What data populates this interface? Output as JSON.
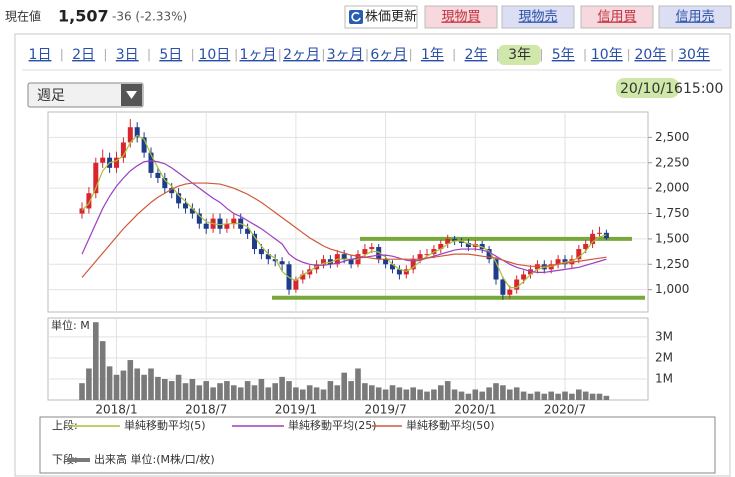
{
  "header": {
    "label": "現在値",
    "price": "1,507",
    "change": "-36 (-2.33%)",
    "buttons": [
      "株価更新",
      "現物買",
      "現物売",
      "信用買",
      "信用売"
    ]
  },
  "periods": {
    "items": [
      "1日",
      "2日",
      "3日",
      "5日",
      "10日",
      "1ヶ月",
      "2ヶ月",
      "3ヶ月",
      "6ヶ月",
      "1年",
      "2年",
      "3年",
      "5年",
      "10年",
      "20年",
      "30年"
    ],
    "selected": 11
  },
  "dropdown": "週足",
  "timestamp": {
    "date": "20/10/16",
    "time": "15:00"
  },
  "chart_data": {
    "type": "candlestick",
    "categories": [
      null,
      null,
      null,
      null,
      null,
      "2018/1",
      null,
      null,
      null,
      null,
      null,
      null,
      null,
      null,
      null,
      null,
      null,
      null,
      "2018/7",
      null,
      null,
      null,
      null,
      null,
      null,
      null,
      null,
      null,
      null,
      null,
      null,
      "2019/1",
      null,
      null,
      null,
      null,
      null,
      null,
      null,
      null,
      null,
      null,
      null,
      null,
      "2019/7",
      null,
      null,
      null,
      null,
      null,
      null,
      null,
      null,
      null,
      null,
      null,
      null,
      "2020/1",
      null,
      null,
      null,
      null,
      null,
      null,
      null,
      null,
      null,
      null,
      null,
      null,
      "2020/7",
      null,
      null,
      null,
      null,
      null,
      null
    ],
    "open": [
      1750,
      1800,
      1950,
      2250,
      2300,
      2200,
      2300,
      2450,
      2600,
      2500,
      2350,
      2150,
      2100,
      2000,
      1950,
      1850,
      1800,
      1750,
      1650,
      1600,
      1700,
      1600,
      1650,
      1700,
      1600,
      1550,
      1400,
      1350,
      1300,
      1280,
      1250,
      1000,
      1100,
      1150,
      1200,
      1250,
      1300,
      1250,
      1350,
      1300,
      1250,
      1350,
      1400,
      1420,
      1300,
      1250,
      1200,
      1150,
      1200,
      1300,
      1350,
      1350,
      1400,
      1450,
      1500,
      1480,
      1460,
      1420,
      1450,
      1400,
      1300,
      1100,
      950,
      1000,
      1100,
      1150,
      1200,
      1250,
      1200,
      1250,
      1300,
      1250,
      1300,
      1400,
      1450,
      1550,
      1560
    ],
    "high": [
      1860,
      2010,
      2300,
      2380,
      2350,
      2360,
      2500,
      2680,
      2650,
      2550,
      2400,
      2200,
      2150,
      2050,
      2000,
      1900,
      1850,
      1800,
      1700,
      1750,
      1750,
      1700,
      1750,
      1750,
      1650,
      1580,
      1450,
      1400,
      1350,
      1320,
      1280,
      1130,
      1190,
      1240,
      1290,
      1340,
      1340,
      1390,
      1390,
      1340,
      1390,
      1450,
      1460,
      1450,
      1340,
      1290,
      1240,
      1240,
      1340,
      1390,
      1400,
      1440,
      1490,
      1540,
      1530,
      1510,
      1500,
      1490,
      1480,
      1430,
      1320,
      1130,
      1040,
      1140,
      1190,
      1240,
      1290,
      1290,
      1290,
      1340,
      1340,
      1340,
      1440,
      1490,
      1590,
      1620,
      1590
    ],
    "low": [
      1700,
      1750,
      1900,
      2200,
      2150,
      2150,
      2250,
      2400,
      2450,
      2300,
      2100,
      2050,
      1950,
      1900,
      1800,
      1750,
      1700,
      1600,
      1550,
      1560,
      1550,
      1560,
      1600,
      1550,
      1500,
      1350,
      1300,
      1250,
      1230,
      1180,
      950,
      970,
      1060,
      1110,
      1160,
      1210,
      1210,
      1220,
      1260,
      1210,
      1220,
      1310,
      1360,
      1260,
      1210,
      1160,
      1100,
      1110,
      1160,
      1260,
      1310,
      1310,
      1360,
      1410,
      1440,
      1420,
      1380,
      1380,
      1360,
      1260,
      1050,
      900,
      910,
      960,
      1060,
      1110,
      1160,
      1160,
      1160,
      1210,
      1210,
      1210,
      1260,
      1360,
      1410,
      1510,
      1490
    ],
    "close": [
      1800,
      1950,
      2250,
      2300,
      2200,
      2300,
      2450,
      2600,
      2500,
      2350,
      2150,
      2100,
      2000,
      1950,
      1850,
      1800,
      1750,
      1650,
      1600,
      1700,
      1600,
      1650,
      1700,
      1600,
      1550,
      1400,
      1350,
      1300,
      1280,
      1250,
      1000,
      1100,
      1150,
      1200,
      1250,
      1300,
      1250,
      1350,
      1300,
      1250,
      1350,
      1400,
      1420,
      1300,
      1250,
      1200,
      1150,
      1200,
      1300,
      1350,
      1350,
      1400,
      1450,
      1500,
      1480,
      1460,
      1420,
      1450,
      1400,
      1300,
      1100,
      950,
      1000,
      1100,
      1150,
      1200,
      1250,
      1200,
      1250,
      1300,
      1250,
      1300,
      1400,
      1450,
      1550,
      1560,
      1507
    ],
    "up_color": "#d9262e",
    "down_color": "#1f3c8c",
    "ylim": [
      780,
      2750
    ],
    "yticks": [
      {
        "value": 1000,
        "label": "1,000"
      },
      {
        "value": 1250,
        "label": "1,250"
      },
      {
        "value": 1500,
        "label": "1,500"
      },
      {
        "value": 1750,
        "label": "1,750"
      },
      {
        "value": 2000,
        "label": "2,000"
      },
      {
        "value": 2250,
        "label": "2,250"
      },
      {
        "value": 2500,
        "label": "2,500"
      }
    ],
    "grid": true,
    "legend_upper": "上段:",
    "legend_lower": "下段:",
    "series": [
      {
        "name": "単純移動平均(5)",
        "color": "#a9c13a",
        "values": [
          1780,
          1850,
          2000,
          2170,
          2250,
          2270,
          2320,
          2450,
          2520,
          2480,
          2330,
          2200,
          2080,
          2020,
          1930,
          1870,
          1800,
          1730,
          1670,
          1650,
          1640,
          1650,
          1650,
          1650,
          1620,
          1520,
          1430,
          1350,
          1310,
          1180,
          1120,
          1090,
          1150,
          1180,
          1230,
          1260,
          1270,
          1300,
          1300,
          1300,
          1300,
          1340,
          1380,
          1370,
          1320,
          1250,
          1200,
          1180,
          1220,
          1280,
          1330,
          1370,
          1400,
          1450,
          1480,
          1480,
          1450,
          1440,
          1420,
          1380,
          1270,
          1120,
          1020,
          1020,
          1080,
          1150,
          1200,
          1220,
          1230,
          1250,
          1270,
          1280,
          1320,
          1380,
          1470,
          1520,
          1540
        ]
      },
      {
        "name": "単純移動平均(25)",
        "color": "#9b3fc0",
        "values": [
          1350,
          1500,
          1650,
          1800,
          1920,
          2020,
          2100,
          2170,
          2220,
          2260,
          2270,
          2260,
          2240,
          2200,
          2150,
          2100,
          2050,
          2000,
          1950,
          1900,
          1860,
          1800,
          1750,
          1720,
          1680,
          1640,
          1600,
          1550,
          1500,
          1450,
          1350,
          1300,
          1270,
          1250,
          1240,
          1240,
          1250,
          1260,
          1280,
          1300,
          1310,
          1320,
          1330,
          1340,
          1340,
          1330,
          1310,
          1290,
          1280,
          1290,
          1310,
          1330,
          1350,
          1370,
          1390,
          1400,
          1400,
          1400,
          1390,
          1370,
          1330,
          1290,
          1250,
          1220,
          1200,
          1180,
          1170,
          1170,
          1180,
          1190,
          1200,
          1210,
          1220,
          1240,
          1260,
          1280,
          1300
        ]
      },
      {
        "name": "単純移動平均(50)",
        "color": "#d0583a",
        "values": [
          1120,
          1200,
          1280,
          1360,
          1440,
          1520,
          1600,
          1670,
          1740,
          1800,
          1860,
          1910,
          1950,
          1990,
          2020,
          2040,
          2050,
          2050,
          2050,
          2045,
          2040,
          2020,
          2000,
          1970,
          1940,
          1900,
          1860,
          1810,
          1760,
          1710,
          1660,
          1610,
          1560,
          1510,
          1470,
          1430,
          1400,
          1380,
          1360,
          1340,
          1330,
          1320,
          1310,
          1300,
          1300,
          1300,
          1300,
          1300,
          1300,
          1300,
          1310,
          1320,
          1330,
          1340,
          1350,
          1350,
          1350,
          1340,
          1330,
          1320,
          1310,
          1290,
          1270,
          1250,
          1240,
          1230,
          1230,
          1230,
          1240,
          1250,
          1260,
          1270,
          1280,
          1290,
          1300,
          1310,
          1320
        ]
      }
    ],
    "reference_lines": [
      {
        "value": 1500,
        "color": "#79a83a"
      },
      {
        "value": 920,
        "color": "#79a83a"
      }
    ],
    "volume": {
      "name": "出来高 単位:(M株/口/枚)",
      "unit_label": "単位: M",
      "color": "#7a7a7a",
      "values": [
        800000,
        1500000,
        3700000,
        2800000,
        1600000,
        1200000,
        1400000,
        1900000,
        1500000,
        1200000,
        1500000,
        1100000,
        1000000,
        900000,
        1200000,
        800000,
        1000000,
        700000,
        900000,
        600000,
        800000,
        900000,
        700000,
        600000,
        900000,
        700000,
        1000000,
        600000,
        800000,
        1100000,
        900000,
        600000,
        500000,
        700000,
        600000,
        500000,
        900000,
        700000,
        1300000,
        900000,
        1500000,
        800000,
        700000,
        600000,
        500000,
        700000,
        600000,
        500000,
        600000,
        500000,
        400000,
        500000,
        700000,
        900000,
        500000,
        400000,
        300000,
        500000,
        400000,
        600000,
        800000,
        700000,
        500000,
        600000,
        400000,
        300000,
        400000,
        300000,
        400000,
        300000,
        400000,
        300000,
        500000,
        400000,
        300000,
        300000,
        200000
      ],
      "ylim": [
        0,
        3900000
      ],
      "yticks": [
        {
          "value": 1000000,
          "label": "1M"
        },
        {
          "value": 2000000,
          "label": "2M"
        },
        {
          "value": 3000000,
          "label": "3M"
        }
      ]
    }
  }
}
